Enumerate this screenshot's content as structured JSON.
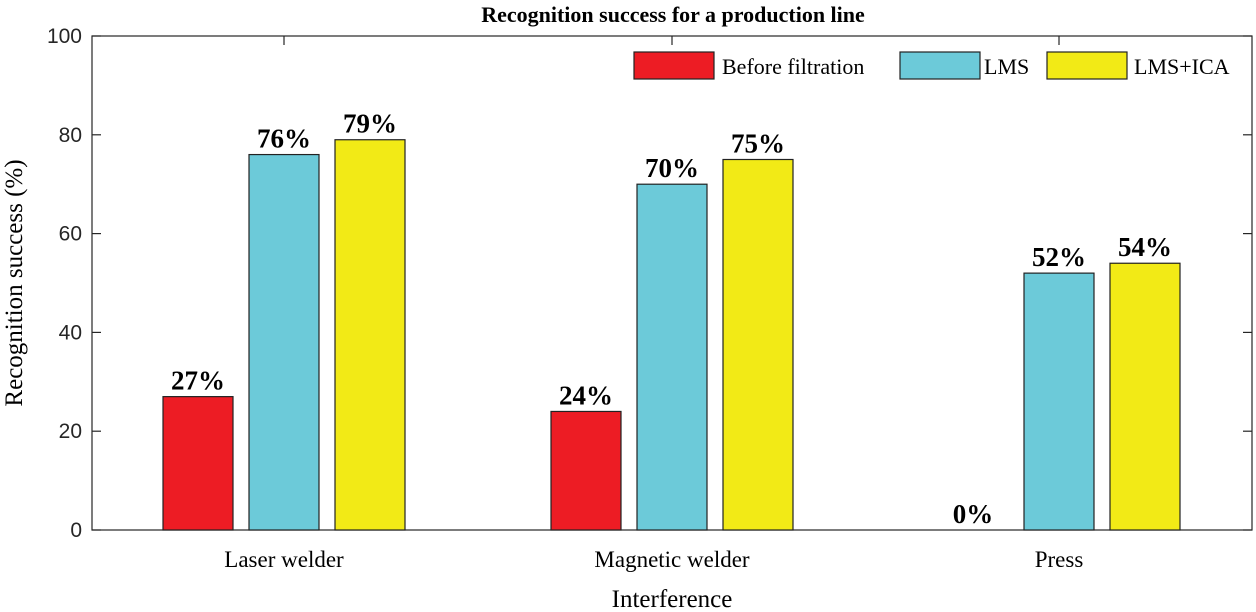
{
  "chart_data": {
    "type": "bar",
    "title": "Recognition success for a production line",
    "xlabel": "Interference",
    "ylabel": "Recognition success (%)",
    "categories": [
      "Laser welder",
      "Magnetic welder",
      "Press"
    ],
    "series": [
      {
        "name": "Before filtration",
        "values": [
          27,
          24,
          0
        ],
        "color": "#ed1c24"
      },
      {
        "name": "LMS",
        "values": [
          76,
          70,
          52
        ],
        "color": "#6ccad9"
      },
      {
        "name": "LMS+ICA",
        "values": [
          79,
          75,
          54
        ],
        "color": "#f2ea16"
      }
    ],
    "data_labels": [
      [
        "27%",
        "76%",
        "79%"
      ],
      [
        "24%",
        "70%",
        "75%"
      ],
      [
        "0%",
        "52%",
        "54%"
      ]
    ],
    "ylim": [
      0,
      100
    ],
    "yticks": [
      "0",
      "20",
      "40",
      "60",
      "80",
      "100"
    ],
    "legend_position": "top-right",
    "grid": false
  }
}
